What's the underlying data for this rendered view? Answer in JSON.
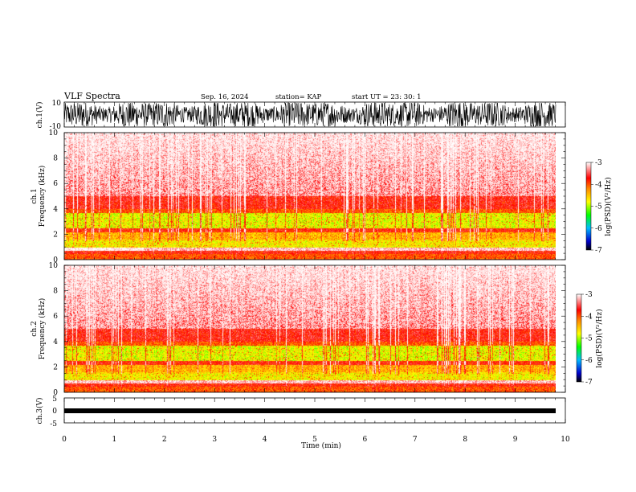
{
  "header": {
    "title": "VLF Spectra",
    "date": "Sep. 16, 2024",
    "station": "station= KAP",
    "start_ut": "start  UT  =   23: 30: 1"
  },
  "chart_data": [
    {
      "type": "line",
      "panel": "ch1-waveform",
      "ylabel": "ch.1(V)",
      "ylim": [
        -10,
        10
      ],
      "yticks": [
        "10",
        "-10"
      ],
      "xlim": [
        0,
        10
      ],
      "color": "#000000"
    },
    {
      "type": "heatmap",
      "panel": "ch1-spectrogram",
      "ylabel_line1": "ch.1",
      "ylabel_line2": "Frequency (kHz)",
      "ylim": [
        0,
        10
      ],
      "yticks": [
        "0",
        "2",
        "4",
        "6",
        "8",
        "10"
      ],
      "xlim": [
        0,
        10
      ],
      "colorbar": {
        "label": "log(PSD)(V²/Hz)",
        "range": [
          -7,
          -3
        ],
        "ticks": [
          "-3",
          "-4",
          "-5",
          "-6",
          "-7"
        ]
      }
    },
    {
      "type": "heatmap",
      "panel": "ch2-spectrogram",
      "ylabel_line1": "ch.2",
      "ylabel_line2": "Frequency (kHz)",
      "ylim": [
        0,
        10
      ],
      "yticks": [
        "0",
        "2",
        "4",
        "6",
        "8",
        "10"
      ],
      "xlim": [
        0,
        10
      ],
      "colorbar": {
        "label": "log(PSD)(V²/Hz)",
        "range": [
          -7,
          -3
        ],
        "ticks": [
          "-3",
          "-4",
          "-5",
          "-6",
          "-7"
        ]
      }
    },
    {
      "type": "line",
      "panel": "ch3-waveform",
      "ylabel": "ch.3(V)",
      "ylim": [
        -5,
        5
      ],
      "yticks": [
        "5",
        "0",
        "-5"
      ],
      "xlim": [
        0,
        10
      ],
      "color": "#000000"
    }
  ],
  "xaxis": {
    "label": "Time (min)",
    "ticks": [
      "0",
      "1",
      "2",
      "3",
      "4",
      "5",
      "6",
      "7",
      "8",
      "9",
      "10"
    ]
  }
}
